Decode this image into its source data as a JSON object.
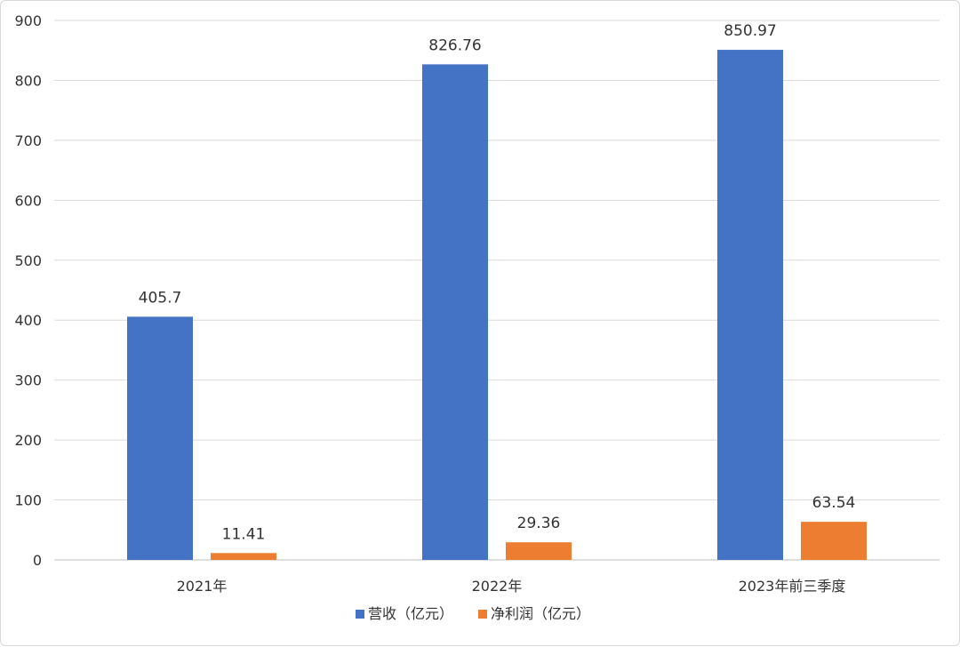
{
  "chart_data": {
    "type": "bar",
    "categories": [
      "2021年",
      "2022年",
      "2023年前三季度"
    ],
    "series": [
      {
        "name": "营收（亿元）",
        "values": [
          405.7,
          826.76,
          850.97
        ],
        "labels": [
          "405.7",
          "826.76",
          "850.97"
        ],
        "color": "#4472C4"
      },
      {
        "name": "净利润（亿元）",
        "values": [
          11.41,
          29.36,
          63.54
        ],
        "labels": [
          "11.41",
          "29.36",
          "63.54"
        ],
        "color": "#ED7D31"
      }
    ],
    "ylim": [
      0,
      900
    ],
    "yticks": [
      "0",
      "100",
      "200",
      "300",
      "400",
      "500",
      "600",
      "700",
      "800",
      "900"
    ],
    "grid": true,
    "legend": "bottom-center"
  }
}
